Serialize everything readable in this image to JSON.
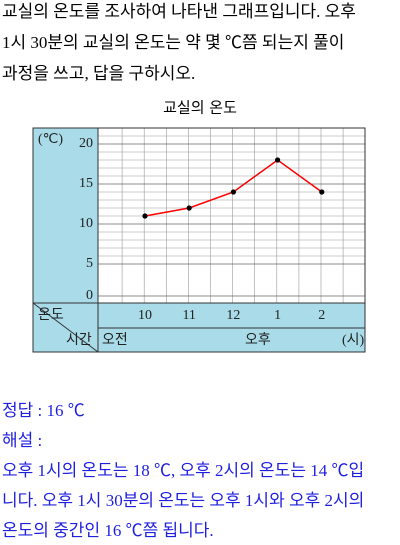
{
  "question": {
    "lines": [
      "교실의 온도를 조사하여  나타낸 그래프입니다. 오후",
      "1시 30분의 교실의 온도는 약 몇 ℃쯤 되는지 풀이",
      "과정을 쓰고, 답을 구하시오."
    ]
  },
  "chart_data": {
    "type": "line",
    "title": "교실의 온도",
    "y_unit": "(℃)",
    "row_labels": {
      "value": "온도",
      "time": "시간"
    },
    "periods": [
      "오전",
      "오후"
    ],
    "x_unit": "(시)",
    "categories": [
      "10",
      "11",
      "12",
      "1",
      "2"
    ],
    "series": [
      {
        "color": "#ff0000",
        "values": [
          11,
          12,
          14,
          18,
          14
        ]
      }
    ],
    "ylim": [
      0,
      22
    ],
    "yticks": [
      0,
      5,
      10,
      15,
      20
    ],
    "axis_break": true,
    "grid": true
  },
  "answer": {
    "result": "정답 : 16 ℃",
    "explanation_label": "해설 :",
    "explanation_lines": [
      "오후 1시의 온도는 18 ℃, 오후 2시의 온도는 14 ℃입",
      "니다. 오후 1시 30분의 온도는 오후 1시와 오후 2시의",
      "온도의 중간인 16 ℃쯤 됩니다."
    ]
  }
}
